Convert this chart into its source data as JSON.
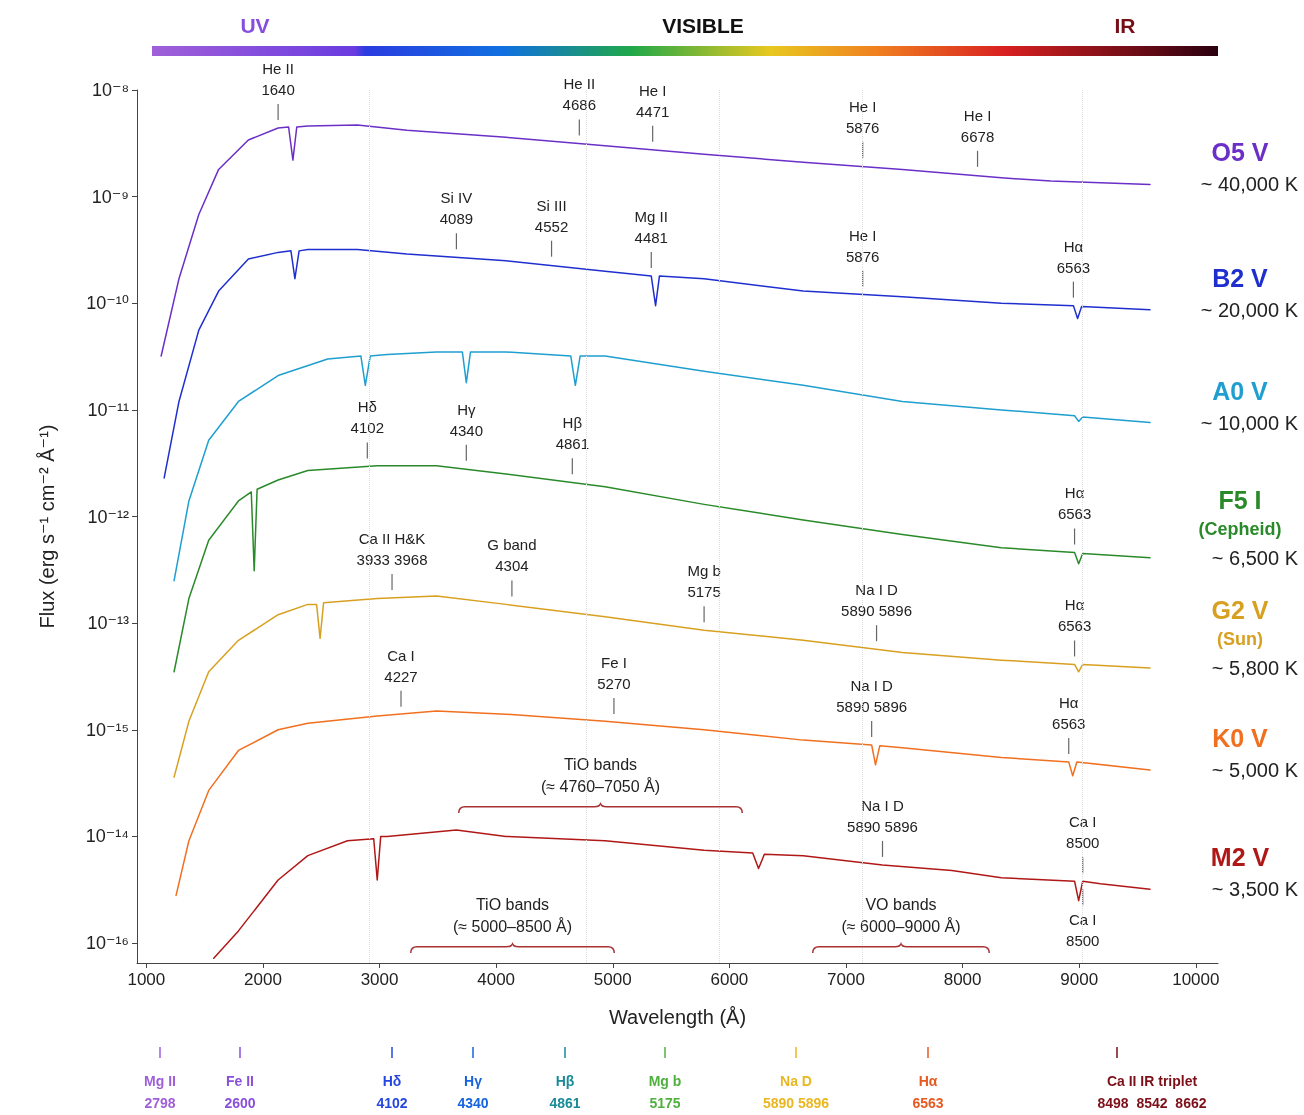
{
  "chart_data": {
    "type": "line",
    "log": "y",
    "xlabel": "Wavelength (Å)",
    "ylabel": "Flux (erg s⁻¹ cm⁻² Å⁻¹)",
    "xlim": [
      920,
      10190
    ],
    "xticks": [
      1000,
      2000,
      3000,
      4000,
      5000,
      6000,
      7000,
      8000,
      9000,
      10000
    ],
    "ylim": [
      6.5e-17,
      1e-08
    ],
    "yticks": [
      {
        "value": 1e-08,
        "label": "10⁻⁸"
      },
      {
        "value": 1e-09,
        "label": "10⁻⁹"
      },
      {
        "value": 1e-10,
        "label": "10⁻¹⁰"
      },
      {
        "value": 1e-11,
        "label": "10⁻¹¹"
      },
      {
        "value": 1e-12,
        "label": "10⁻¹²"
      },
      {
        "value": 1e-13,
        "label": "10⁻¹³"
      },
      {
        "value": 1e-14,
        "label": "10⁻¹⁵"
      },
      {
        "value": 1e-15,
        "label": "10⁻¹⁴"
      },
      {
        "value": 1e-16,
        "label": "10⁻¹⁶"
      }
    ],
    "series": [
      {
        "name": "O5 V",
        "color": "#6b2fc8",
        "x": [
          1127,
          1280,
          1450,
          1620,
          1875,
          2130,
          2220,
          2257,
          2290,
          2385,
          2810,
          3235,
          4084,
          4934,
          5783,
          6633,
          7483,
          8332,
          8757,
          9607
        ],
        "values": [
          3.2e-11,
          1.7e-10,
          6.8e-10,
          1.8e-09,
          3.4e-09,
          4.4e-09,
          4.5e-09,
          2.2e-09,
          4.5e-09,
          4.6e-09,
          4.7e-09,
          4.2e-09,
          3.6e-09,
          3e-09,
          2.5e-09,
          2.1e-09,
          1.8e-09,
          1.5e-09,
          1.4e-09,
          1.3e-09
        ]
      },
      {
        "name": "B2 V",
        "color": "#1f2fcf",
        "x": [
          1153,
          1280,
          1450,
          1620,
          1875,
          2130,
          2240,
          2274,
          2310,
          2385,
          2810,
          3235,
          4084,
          4934,
          5330,
          5367,
          5400,
          5783,
          6633,
          7483,
          8332,
          8950,
          8986,
          9020,
          9607
        ],
        "values": [
          2.3e-12,
          1.2e-11,
          5.6e-11,
          1.3e-10,
          2.6e-10,
          3e-10,
          3.1e-10,
          1.7e-10,
          3.1e-10,
          3.2e-10,
          3.2e-10,
          2.9e-10,
          2.5e-10,
          2e-10,
          1.8e-10,
          9.5e-11,
          1.8e-10,
          1.7e-10,
          1.3e-10,
          1.15e-10,
          1e-10,
          9.5e-11,
          7.2e-11,
          9.3e-11,
          8.7e-11
        ]
      },
      {
        "name": "A0 V",
        "color": "#1f9fcf",
        "x": [
          1238,
          1365,
          1535,
          1790,
          2130,
          2555,
          2840,
          2878,
          2920,
          3065,
          3489,
          3710,
          3744,
          3780,
          4084,
          4640,
          4679,
          4720,
          4934,
          5783,
          6633,
          7483,
          8332,
          8960,
          8995,
          9030,
          9607
        ],
        "values": [
          2.5e-13,
          1.4e-12,
          5.2e-12,
          1.2e-11,
          2.1e-11,
          3e-11,
          3.2e-11,
          1.7e-11,
          3.2e-11,
          3.3e-11,
          3.5e-11,
          3.5e-11,
          1.8e-11,
          3.5e-11,
          3.5e-11,
          3.2e-11,
          1.7e-11,
          3.2e-11,
          3.2e-11,
          2.3e-11,
          1.7e-11,
          1.2e-11,
          1e-11,
          8.8e-12,
          7.8e-12,
          8.6e-12,
          7.6e-12
        ]
      },
      {
        "name": "F5 I\n(Cepheid)",
        "color": "#2a8a2a",
        "x": [
          1238,
          1365,
          1535,
          1790,
          1900,
          1925,
          1950,
          2130,
          2385,
          2980,
          3489,
          4084,
          4934,
          5783,
          6633,
          7483,
          8332,
          8960,
          8995,
          9030,
          9607
        ],
        "values": [
          3.5e-14,
          1.7e-13,
          6e-13,
          1.4e-12,
          1.7e-12,
          3.1e-13,
          1.8e-12,
          2.2e-12,
          2.7e-12,
          3e-12,
          3e-12,
          2.5e-12,
          1.9e-12,
          1.3e-12,
          9.3e-13,
          6.8e-13,
          5.1e-13,
          4.6e-13,
          3.6e-13,
          4.5e-13,
          4.1e-13
        ]
      },
      {
        "name": "G2 V\n(Sun)",
        "color": "#d8a020",
        "x": [
          1238,
          1365,
          1535,
          1790,
          2130,
          2385,
          2460,
          2490,
          2520,
          2980,
          3489,
          4084,
          4934,
          5783,
          6633,
          7483,
          8332,
          8960,
          8995,
          9030,
          9607
        ],
        "values": [
          3.6e-15,
          1.2e-14,
          3.5e-14,
          6.9e-14,
          1.2e-13,
          1.5e-13,
          1.5e-13,
          7.2e-14,
          1.55e-13,
          1.7e-13,
          1.8e-13,
          1.5e-13,
          1.15e-13,
          8.6e-14,
          6.9e-14,
          5.3e-14,
          4.5e-14,
          4.1e-14,
          3.5e-14,
          4.1e-14,
          3.8e-14
        ]
      },
      {
        "name": "K0 V",
        "color": "#f07020",
        "x": [
          1255,
          1365,
          1535,
          1790,
          2130,
          2385,
          2980,
          3489,
          4084,
          4934,
          5783,
          6633,
          7220,
          7253,
          7290,
          7483,
          8332,
          8910,
          8944,
          8980,
          9607
        ],
        "values": [
          2.8e-16,
          9.1e-16,
          2.7e-15,
          6.4e-15,
          1e-14,
          1.15e-14,
          1.35e-14,
          1.5e-14,
          1.4e-14,
          1.2e-14,
          1e-14,
          8e-15,
          7.2e-15,
          4.7e-15,
          7.1e-15,
          6.8e-15,
          5.5e-15,
          5e-15,
          3.7e-15,
          5e-15,
          4.2e-15
        ]
      },
      {
        "name": "M2 V",
        "color": "#b01818",
        "x": [
          1578,
          1790,
          2130,
          2385,
          2725,
          2950,
          2980,
          3010,
          3065,
          3659,
          4084,
          4934,
          5783,
          6200,
          6250,
          6300,
          6633,
          7313,
          7908,
          8332,
          8960,
          8995,
          9030,
          9182,
          9607
        ],
        "values": [
          7.2e-17,
          1.3e-16,
          3.9e-16,
          6.6e-16,
          9.1e-16,
          9.5e-16,
          3.9e-16,
          1e-15,
          1e-15,
          1.15e-15,
          1e-15,
          9.1e-16,
          7.4e-16,
          7e-16,
          5e-16,
          6.8e-16,
          6.6e-16,
          5.4e-16,
          4.8e-16,
          4.1e-16,
          3.8e-16,
          2.5e-16,
          3.8e-16,
          3.6e-16,
          3.2e-16
        ]
      }
    ],
    "ref_lines": [
      {
        "axis": "x",
        "value": 2910,
        "color": "#dddddd",
        "line_style": "dotted"
      },
      {
        "axis": "x",
        "value": 4770,
        "color": "#dddddd",
        "line_style": "dotted"
      },
      {
        "axis": "x",
        "value": 5910,
        "color": "#dddddd",
        "line_style": "dotted"
      },
      {
        "axis": "x",
        "value": 7140,
        "color": "#dddddd",
        "line_style": "dotted"
      },
      {
        "axis": "x",
        "value": 9030,
        "color": "#dddddd",
        "line_style": "dotted"
      }
    ],
    "annotations": [
      "~ 40,000 K",
      "~ 20,000 K",
      "~ 10,000 K",
      "~ 6,500 K",
      "~ 5,800 K",
      "~ 5,000 K",
      "~ 3,500 K",
      "UV",
      "VISIBLE",
      "IR",
      "Mg II\n2798",
      "Fe II\n2600",
      "Hδ\n4102",
      "Hγ\n4340",
      "Hβ\n4861",
      "Mg b\n5175",
      "Na D\n5890 5896",
      "Hα\n6563",
      "Ca II IR triplet\n8498  8542  8662",
      "TiO bands\n(≈ 4760–7050 Å)",
      "TiO bands\n(≈ 5000–8500 Å)",
      "VO bands\n(≈ 6000–9000 Å)",
      {
        "text": "He II\n1640",
        "x": 2130,
        "y": 4.4e-09
      },
      {
        "text": "He II\n4686",
        "x": 4713,
        "y": 3.15e-09
      },
      {
        "text": "He I\n4471",
        "x": 5342,
        "y": 2.75e-09
      },
      {
        "text": "He I\n5876",
        "x": 7143,
        "y": 1.95e-09
      },
      {
        "text": "He I\n6678",
        "x": 8128,
        "y": 1.6e-09
      },
      {
        "text": "Si IV\n4089",
        "x": 3659,
        "y": 2.7e-10
      },
      {
        "text": "Si III\n4552",
        "x": 4475,
        "y": 2.3e-10
      },
      {
        "text": "Mg II\n4481",
        "x": 5330,
        "y": 1.8e-10
      },
      {
        "text": "He I\n5876",
        "x": 7143,
        "y": 1.2e-10
      },
      {
        "text": "Hα\n6563",
        "x": 8950,
        "y": 9.5e-11
      },
      {
        "text": "Hδ\n4102",
        "x": 2895,
        "y": 2.95e-12
      },
      {
        "text": "Hγ\n4340",
        "x": 3744,
        "y": 2.8e-12
      },
      {
        "text": "Hβ\n4861",
        "x": 4653,
        "y": 2.1e-12
      },
      {
        "text": "Hα\n6563",
        "x": 8960,
        "y": 4.6e-13
      },
      {
        "text": "Ca II H&K\n3933 3968",
        "x": 3107,
        "y": 1.72e-13
      },
      {
        "text": "G band\n4304",
        "x": 4135,
        "y": 1.5e-13
      },
      {
        "text": "Mg b\n5175",
        "x": 5783,
        "y": 8.6e-14
      },
      {
        "text": "Na I D\n5890 5896",
        "x": 7262,
        "y": 5.7e-14
      },
      {
        "text": "Hα\n6563",
        "x": 8960,
        "y": 4.1e-14
      },
      {
        "text": "Ca I\n4227",
        "x": 3184,
        "y": 1.38e-14
      },
      {
        "text": "Fe I\n5270",
        "x": 5010,
        "y": 1.18e-14
      },
      {
        "text": "Na I D\n5890 5896",
        "x": 7220,
        "y": 7.2e-15
      },
      {
        "text": "Hα\n6563",
        "x": 8910,
        "y": 5e-15
      },
      {
        "text": "Na I D\n5890 5896",
        "x": 7313,
        "y": 5.4e-16
      },
      {
        "text": "Ca I\n8500",
        "x": 9030,
        "y": 3.8e-16
      },
      {
        "text": "Ca I\n8500",
        "x": 9030,
        "y": 3.8e-16
      }
    ]
  }
}
